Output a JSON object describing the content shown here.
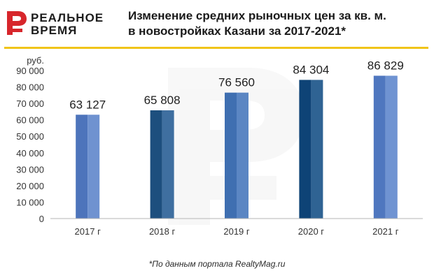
{
  "logo": {
    "line1": "РЕАЛЬНОЕ",
    "line2": "ВРЕМЯ",
    "colors": {
      "mark": "#d7262b",
      "text": "#1c1c1c"
    }
  },
  "title": {
    "line1": "Изменение средних рыночных цен за кв. м.",
    "line2": "в новостройках Казани за 2017-2021*"
  },
  "footnote": "*По данным портала RealtyMag.ru",
  "chart_data": {
    "type": "bar",
    "title": "Изменение средних рыночных цен за кв. м. в новостройках Казани за 2017-2021*",
    "ylabel": "руб.",
    "xlabel": "",
    "categories": [
      "2017 г",
      "2018 г",
      "2019 г",
      "2020 г",
      "2021 г"
    ],
    "values": [
      63127,
      65808,
      76560,
      84304,
      86829
    ],
    "value_labels": [
      "63 127",
      "65 808",
      "76 560",
      "84 304",
      "86 829"
    ],
    "ylim": [
      0,
      90000
    ],
    "yticks": [
      0,
      10000,
      20000,
      30000,
      40000,
      50000,
      60000,
      70000,
      80000,
      90000
    ],
    "ytick_labels": [
      "0",
      "10 000",
      "20 000",
      "30 000",
      "40 000",
      "50 000",
      "60 000",
      "70 000",
      "80 000",
      "90 000"
    ],
    "grid": false,
    "bar_colors": [
      [
        "#4d74bb",
        "#6f92d0"
      ],
      [
        "#1d4f7e",
        "#3f6fa0"
      ],
      [
        "#3f6fb1",
        "#5b86c3"
      ],
      [
        "#0e4376",
        "#2f6393"
      ],
      [
        "#4f77bf",
        "#6f93d2"
      ]
    ],
    "axis_color": "#b5b5b5"
  }
}
